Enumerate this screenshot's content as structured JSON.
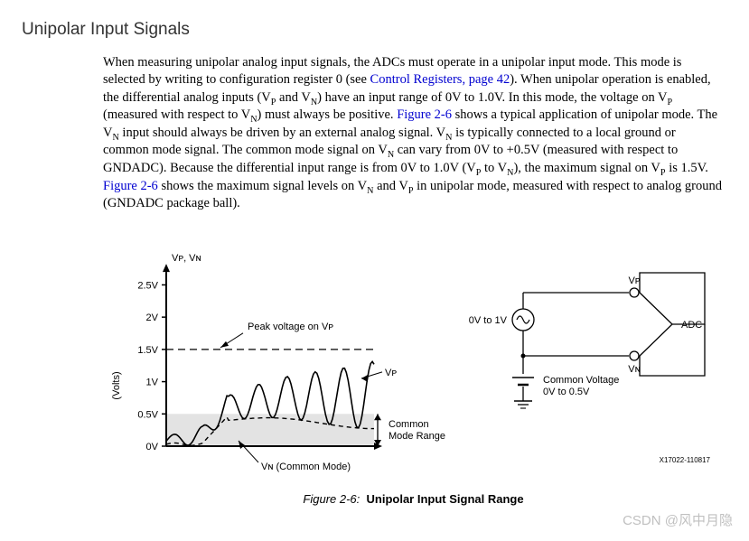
{
  "section_title": "Unipolar Input Signals",
  "paragraph": {
    "t1": "When measuring unipolar analog input signals, the ADCs must operate in a unipolar input mode. This mode is selected by writing to configuration register 0 (see ",
    "link1": "Control Registers, page 42",
    "t2": "). When unipolar operation is enabled, the differential analog inputs (V",
    "sub_p1": "P",
    "t3": " and V",
    "sub_n1": "N",
    "t4": ") have an input range of 0V to 1.0V. In this mode, the voltage on V",
    "sub_p2": "P",
    "t5": " (measured with respect to V",
    "sub_n2": "N",
    "t6": ") must always be positive. ",
    "link2": "Figure 2-6",
    "t7": " shows a typical application of unipolar mode. The V",
    "sub_n3": "N",
    "t8": " input should always be driven by an external analog signal. V",
    "sub_n4": "N",
    "t9": " is typically connected to a local ground or common mode signal. The common mode signal on V",
    "sub_n5": "N",
    "t10": " can vary from 0V to +0.5V (measured with respect to GNDADC). Because the differential input range is from 0V to 1.0V (V",
    "sub_p3": "P",
    "t11": " to V",
    "sub_n6": "N",
    "t12": "), the maximum signal on V",
    "sub_p4": "P",
    "t13": " is 1.5V. ",
    "link3": "Figure 2-6",
    "t14": " shows the maximum signal levels on V",
    "sub_n7": "N",
    "t15": " and V",
    "sub_p5": "P",
    "t16": " in unipolar mode, measured with respect to analog ground (GNDADC package ball)."
  },
  "figure": {
    "caption_label": "Figure 2-6:",
    "caption_title": "Unipolar Input Signal Range",
    "id_text": "X17022-110817",
    "chart": {
      "type": "custom-line",
      "y_axis_title_top": "Vᴘ, Vɴ",
      "y_axis_label": "(Volts)",
      "y_ticks": [
        "0V",
        "0.5V",
        "1V",
        "1.5V",
        "2V",
        "2.5V"
      ],
      "y_values": [
        0,
        0.5,
        1.0,
        1.5,
        2.0,
        2.5
      ],
      "ylim": [
        0,
        2.8
      ],
      "peak_limit_v": 1.5,
      "common_mode_max_v": 0.5,
      "annot_peak": "Peak voltage on Vᴘ",
      "annot_vp": "Vᴘ",
      "annot_vn": "Vɴ  (Common Mode)",
      "annot_cm_range": "Common\nMode Range",
      "shaded_fill": "#e3e3e3",
      "line_color": "#000000",
      "dash_color": "#000000",
      "bg": "#ffffff",
      "tick_fontsize": 11,
      "label_fontsize": 11
    },
    "circuit": {
      "type": "schematic",
      "source_label": "0V to 1V",
      "vp_label": "Vᴘ",
      "vn_label": "Vɴ",
      "adc_label": "ADC",
      "cm_label_line1": "Common Voltage",
      "cm_label_line2": "0V to 0.5V",
      "line_color": "#000000",
      "terminal_fill": "#ffffff"
    }
  },
  "watermark": "CSDN @风中月隐"
}
